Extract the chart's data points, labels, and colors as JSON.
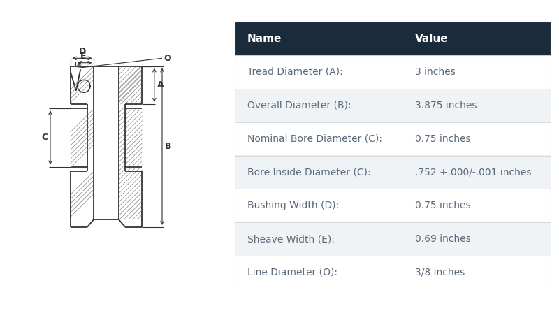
{
  "table_header_bg": "#1a2b3c",
  "table_header_text": "#ffffff",
  "table_row_bg1": "#ffffff",
  "table_row_bg2": "#f0f3f6",
  "table_text_color": "#5a6a7a",
  "table_border_color": "#c8cdd2",
  "col_names": [
    "Name",
    "Value"
  ],
  "rows": [
    [
      "Tread Diameter (A):",
      "3 inches"
    ],
    [
      "Overall Diameter (B):",
      "3.875 inches"
    ],
    [
      "Nominal Bore Diameter (C):",
      "0.75 inches"
    ],
    [
      "Bore Inside Diameter (C):",
      ".752 +.000/-.001 inches"
    ],
    [
      "Bushing Width (D):",
      "0.75 inches"
    ],
    [
      "Sheave Width (E):",
      "0.69 inches"
    ],
    [
      "Line Diameter (O):",
      "3/8 inches"
    ]
  ],
  "diagram_line_color": "#333333",
  "hatch_color": "#666666",
  "bg_color": "#ffffff",
  "label_fontsize": 9,
  "table_header_fontsize": 11,
  "table_row_fontsize": 10
}
